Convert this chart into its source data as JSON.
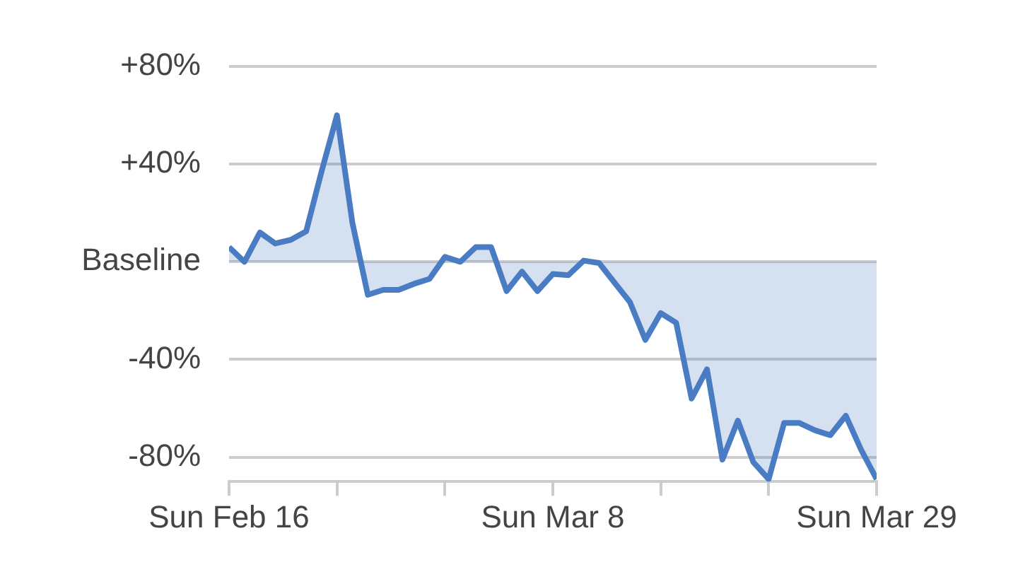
{
  "chart_data": {
    "type": "area",
    "x": [
      "--02-16",
      "--02-17",
      "--02-18",
      "--02-19",
      "--02-20",
      "--02-21",
      "--02-22",
      "--02-23",
      "--02-24",
      "--02-25",
      "--02-26",
      "--02-27",
      "--02-28",
      "--02-29",
      "--03-01",
      "--03-02",
      "--03-03",
      "--03-04",
      "--03-05",
      "--03-06",
      "--03-07",
      "--03-08",
      "--03-09",
      "--03-10",
      "--03-11",
      "--03-12",
      "--03-13",
      "--03-14",
      "--03-15",
      "--03-16",
      "--03-17",
      "--03-18",
      "--03-19",
      "--03-20",
      "--03-21",
      "--03-22",
      "--03-23",
      "--03-24",
      "--03-25",
      "--03-26",
      "--03-27",
      "--03-28",
      "--03-29"
    ],
    "series": [
      {
        "color": "#4a7cc4",
        "values": [
          6,
          0,
          12,
          7.5,
          9,
          12.5,
          37,
          60,
          16,
          -13.5,
          -11.5,
          -11.5,
          -9,
          -7,
          2,
          0,
          6,
          6,
          -12,
          -4,
          -12,
          -5,
          -5.5,
          0.5,
          -0.5,
          -8.5,
          -16.5,
          -32,
          -21,
          -25,
          -56,
          -44,
          -81,
          -65,
          -82,
          -89,
          -66,
          -66,
          -69,
          -71,
          -63,
          -77,
          -89
        ]
      }
    ],
    "xlim": [
      "--02-16",
      "--03-29"
    ],
    "xticks": [
      {
        "value": "--02-16",
        "label": "Sun Feb 16"
      },
      {
        "value": "--02-23",
        "label": null
      },
      {
        "value": "--03-01",
        "label": null
      },
      {
        "value": "--03-08",
        "label": "Sun Mar 8"
      },
      {
        "value": "--03-15",
        "label": null
      },
      {
        "value": "--03-22",
        "label": null
      },
      {
        "value": "--03-29",
        "label": "Sun Mar 29"
      }
    ],
    "ylim": [
      -90,
      80
    ],
    "yticks": [
      {
        "value": -80,
        "label": "-80%"
      },
      {
        "value": -40,
        "label": "-40%"
      },
      {
        "value": 0,
        "label": "Baseline"
      },
      {
        "value": 40,
        "label": "+40%"
      },
      {
        "value": 80,
        "label": "+80%"
      }
    ],
    "grid": "y"
  }
}
